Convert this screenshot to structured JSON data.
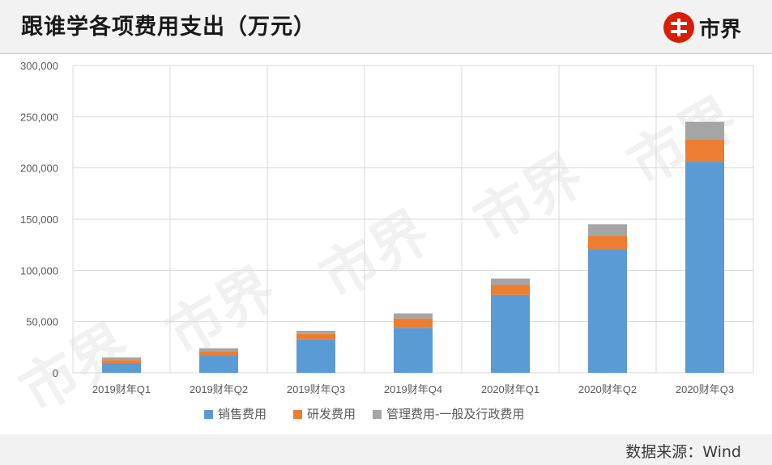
{
  "header": {
    "title": "跟谁学各项费用支出（万元）",
    "logo_text": "市界"
  },
  "footer": {
    "source": "数据来源：Wind"
  },
  "watermark": {
    "text": "市界"
  },
  "colors": {
    "series": [
      "#5b9bd5",
      "#ed7d31",
      "#a5a5a5"
    ],
    "logo_red": "#d81e06",
    "grid": "#d9d9d9"
  },
  "chart_data": {
    "type": "bar",
    "stacked": true,
    "categories": [
      "2019财年Q1",
      "2019财年Q2",
      "2019财年Q3",
      "2019财年Q4",
      "2020财年Q1",
      "2020财年Q2",
      "2020财年Q3"
    ],
    "series": [
      {
        "name": "销售费用",
        "values": [
          9500,
          17000,
          33000,
          44000,
          76000,
          120000,
          206000
        ]
      },
      {
        "name": "研发费用",
        "values": [
          3000,
          4000,
          5000,
          9000,
          10000,
          14000,
          22000
        ]
      },
      {
        "name": "管理费用-一般及行政费用",
        "values": [
          2500,
          3000,
          3000,
          5000,
          6000,
          11000,
          17000
        ]
      }
    ],
    "ylim": [
      0,
      300000
    ],
    "yticks": [
      0,
      50000,
      100000,
      150000,
      200000,
      250000,
      300000
    ],
    "ytick_labels": [
      "0",
      "50,000",
      "100,000",
      "150,000",
      "200,000",
      "250,000",
      "300,000"
    ],
    "grid": true,
    "legend_position": "bottom"
  }
}
